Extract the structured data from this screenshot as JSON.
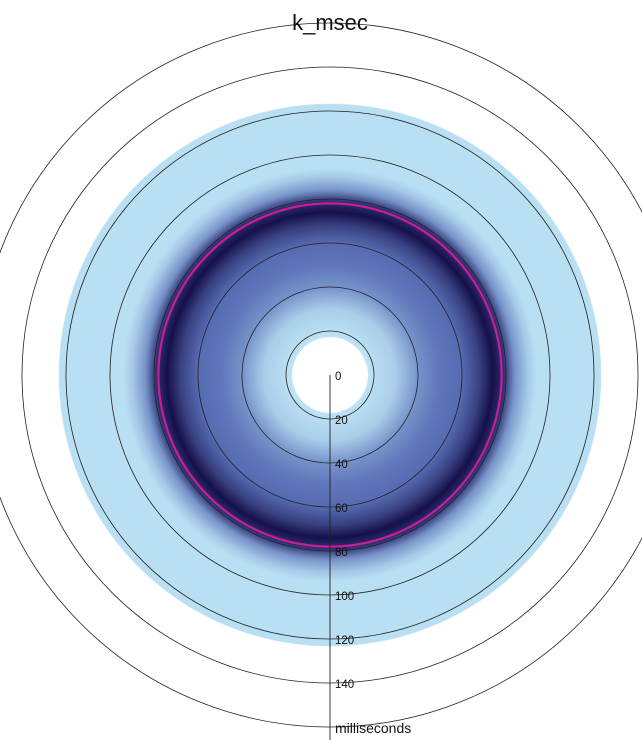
{
  "chart_data": {
    "type": "heatmap",
    "title": "k_msec",
    "radial_axis": {
      "label": "milliseconds",
      "ticks": [
        0,
        20,
        40,
        60,
        80,
        100,
        120,
        140
      ],
      "range": [
        0,
        160
      ]
    },
    "highlight_ring": {
      "value": 78,
      "color": "#cc1a99"
    },
    "density_profile": [
      {
        "r": 0,
        "level": 0.0
      },
      {
        "r": 17,
        "level": 0.0
      },
      {
        "r": 17.5,
        "level": 0.18
      },
      {
        "r": 30,
        "level": 0.28
      },
      {
        "r": 40,
        "level": 0.55
      },
      {
        "r": 50,
        "level": 0.68
      },
      {
        "r": 60,
        "level": 0.72
      },
      {
        "r": 68,
        "level": 0.85
      },
      {
        "r": 74,
        "level": 1.0
      },
      {
        "r": 79,
        "level": 0.9
      },
      {
        "r": 84,
        "level": 0.55
      },
      {
        "r": 90,
        "level": 0.3
      },
      {
        "r": 94,
        "level": 0.2
      },
      {
        "r": 123,
        "level": 0.2
      },
      {
        "r": 123.5,
        "level": 0.0
      }
    ],
    "colors": {
      "low": "#bde3f5",
      "mid": "#5b72b8",
      "high": "#16104a",
      "background": "#ffffff",
      "grid": "#222222"
    },
    "grid": true
  }
}
